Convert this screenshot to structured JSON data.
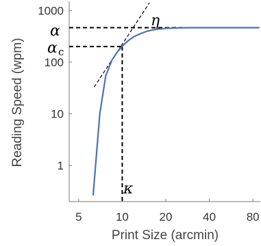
{
  "chart_data": {
    "type": "line",
    "xlabel": "Print Size (arcmin)",
    "ylabel": "Reading Speed (wpm)",
    "xscale": "log",
    "yscale": "log",
    "xlim": [
      4.3,
      90
    ],
    "ylim": [
      0.2,
      1500
    ],
    "xticks": [
      5,
      10,
      20,
      40,
      80
    ],
    "xtick_labels": [
      "5",
      "10",
      "20",
      "40",
      "80"
    ],
    "yticks": [
      1,
      10,
      100,
      1000
    ],
    "ytick_labels": [
      "1",
      "10",
      "100",
      "1000"
    ],
    "grid": false,
    "series": [
      {
        "color": "#4a72b0",
        "x": [
          6.3,
          7.0,
          7.7,
          8.5,
          9.3,
          10.0,
          11.0,
          12.0,
          13.5,
          15.0,
          17.0,
          20.0,
          25.0,
          30.0,
          40.0,
          60.0,
          88.0
        ],
        "y": [
          0.27,
          10.0,
          55.0,
          110.0,
          160.0,
          205.0,
          260.0,
          310.0,
          360.0,
          400.0,
          430.0,
          450.0,
          460.0,
          465.0,
          465.0,
          465.0,
          465.0
        ]
      }
    ],
    "annotations": {
      "alpha": {
        "label": "α",
        "y": 465.0,
        "x_end": 43.0
      },
      "alpha_c": {
        "label": "α",
        "subscript": "c",
        "y": 200.0
      },
      "kappa": {
        "label": "κ",
        "x": 10.0
      },
      "eta": {
        "label": "η",
        "x_start": 6.4,
        "y_start": 33.0,
        "x_end": 15.4,
        "y_end": 1400.0
      }
    }
  }
}
